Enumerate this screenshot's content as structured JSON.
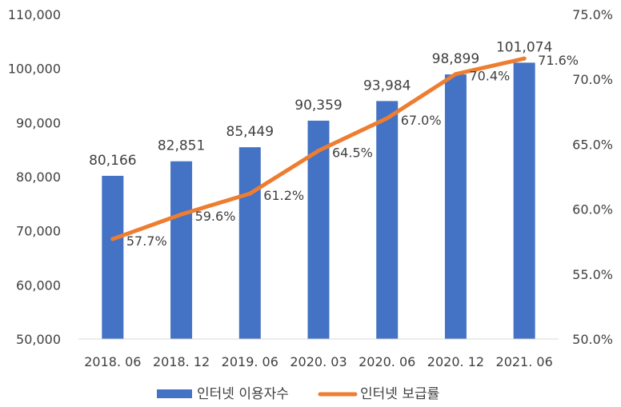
{
  "chart_data": {
    "type": "bar+line",
    "categories": [
      "2018. 06",
      "2018. 12",
      "2019. 06",
      "2020. 03",
      "2020. 06",
      "2020. 12",
      "2021. 06"
    ],
    "series": [
      {
        "name": "인터넷 이용자수",
        "type": "bar",
        "axis": "left",
        "values": [
          80166,
          82851,
          85449,
          90359,
          93984,
          98899,
          101074
        ],
        "labels": [
          "80,166",
          "82,851",
          "85,449",
          "90,359",
          "93,984",
          "98,899",
          "101,074"
        ],
        "color": "#4472C4"
      },
      {
        "name": "인터넷 보급률",
        "type": "line",
        "axis": "right",
        "values": [
          57.7,
          59.6,
          61.2,
          64.5,
          67.0,
          70.4,
          71.6
        ],
        "labels": [
          "57.7%",
          "59.6%",
          "61.2%",
          "64.5%",
          "67.0%",
          "70.4%",
          "71.6%"
        ],
        "color": "#ED7D31"
      }
    ],
    "y_left": {
      "min": 50000,
      "max": 110000,
      "step": 10000,
      "ticks": [
        "50,000",
        "60,000",
        "70,000",
        "80,000",
        "90,000",
        "100,000",
        "110,000"
      ]
    },
    "y_right": {
      "min": 50,
      "max": 75,
      "step": 5,
      "ticks": [
        "50.0%",
        "55.0%",
        "60.0%",
        "65.0%",
        "70.0%",
        "75.0%"
      ]
    },
    "legend": {
      "position": "bottom",
      "items": [
        {
          "label": "인터넷 이용자수",
          "color": "#4472C4"
        },
        {
          "label": "인터넷 보급률",
          "color": "#ED7D31"
        }
      ]
    },
    "grid": false
  }
}
